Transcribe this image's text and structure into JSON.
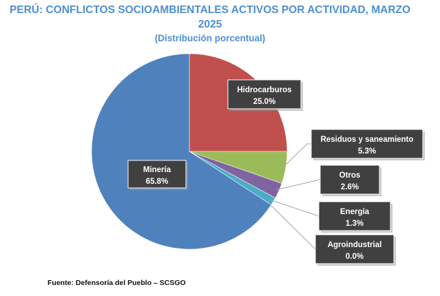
{
  "chart_data": {
    "type": "pie",
    "title": "PERÚ: CONFLICTOS SOCIOAMBIENTALES ACTIVOS POR ACTIVIDAD, MARZO 2025",
    "title_line1": "PERÚ: CONFLICTOS SOCIOAMBIENTALES ACTIVOS POR ACTIVIDAD, MARZO",
    "title_line2": "2025",
    "subtitle": "(Distribución porcentual)",
    "unit": "%",
    "slices": [
      {
        "name": "Hidrocarburos",
        "value": 25.0,
        "value_label": "25.0%",
        "color": "#c0504d"
      },
      {
        "name": "Residuos y saneamiento",
        "value": 5.3,
        "value_label": "5.3%",
        "color": "#9bbb59"
      },
      {
        "name": "Otros",
        "value": 2.6,
        "value_label": "2.6%",
        "color": "#8064a2"
      },
      {
        "name": "Energía",
        "value": 1.3,
        "value_label": "1.3%",
        "color": "#4bacc6"
      },
      {
        "name": "Agroindustrial",
        "value": 0.0,
        "value_label": "0.0%",
        "color": "#f79646"
      },
      {
        "name": "Minería",
        "value": 65.8,
        "value_label": "65.8%",
        "color": "#4f81bd"
      }
    ],
    "label_box_color": "#404040"
  },
  "source": "Fuente: Defensoría del Pueblo – SCSGO"
}
